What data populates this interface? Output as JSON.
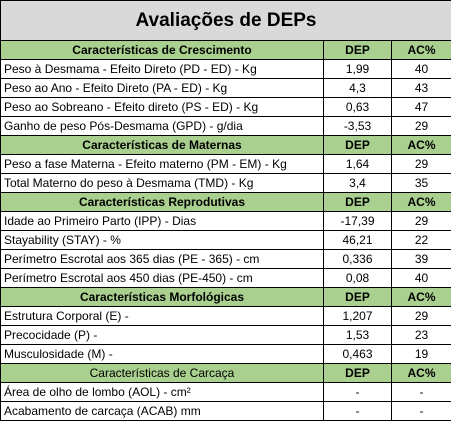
{
  "title": "Avaliações de DEPs",
  "sections": [
    {
      "title": "Características de Crescimento",
      "dep_header": "DEP",
      "ac_header": "AC%",
      "rows": [
        [
          "Peso à Desmama - Efeito Direto (PD - ED) - Kg",
          "1,99",
          40
        ],
        [
          "Peso ao Ano - Efeito Direto (PA - ED) - Kg",
          "4,3",
          43
        ],
        [
          "Peso ao Sobreano - Efeito direto (PS - ED) - Kg",
          "0,63",
          47
        ],
        [
          "Ganho de peso Pós-Desmama (GPD) - g/dia",
          "-3,53",
          29
        ]
      ]
    },
    {
      "title": "Características de Maternas",
      "dep_header": "DEP",
      "ac_header": "AC%",
      "rows": [
        [
          "Peso a fase Materna - Efeito materno (PM - EM) - Kg",
          "1,64",
          29
        ],
        [
          "Total Materno do peso à Desmama (TMD) - Kg",
          "3,4",
          35
        ]
      ]
    },
    {
      "title": "Características Reprodutivas",
      "dep_header": "DEP",
      "ac_header": "AC%",
      "rows": [
        [
          "Idade ao Primeiro Parto (IPP) - Dias",
          "-17,39",
          29
        ],
        [
          "Stayability (STAY) - %",
          "46,21",
          22
        ],
        [
          "Perímetro Escrotal aos 365 dias (PE - 365) - cm",
          "0,336",
          39
        ],
        [
          "Perímetro Escrotal aos 450 dias (PE-450) - cm",
          "0,08",
          40
        ]
      ]
    },
    {
      "title": "Características Morfológicas",
      "dep_header": "DEP",
      "ac_header": "AC%",
      "rows": [
        [
          "Estrutura Corporal (E) -",
          "1,207",
          29
        ],
        [
          "Precocidade (P) -",
          "1,53",
          23
        ],
        [
          "Musculosidade (M) -",
          "0,463",
          19
        ]
      ]
    },
    {
      "title": "Características de Carcaça",
      "dep_header": "DEP",
      "ac_header": "AC%",
      "rows": [
        [
          "Área de olho de lombo (AOL) - cm²",
          "-",
          "-"
        ],
        [
          "Acabamento de carcaça (ACAB) mm",
          "-",
          "-"
        ]
      ]
    }
  ]
}
